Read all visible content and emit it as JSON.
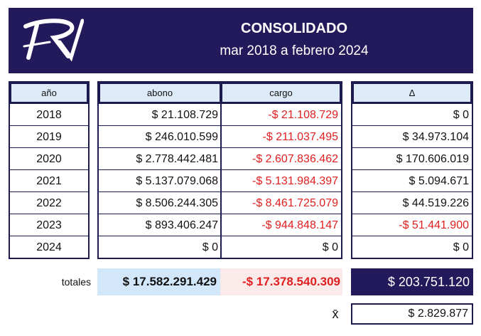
{
  "header": {
    "title": "CONSOLIDADO",
    "subtitle": "mar 2018 a febrero 2024",
    "logo_icon": "rv-monogram-logo",
    "background": "#221a5a"
  },
  "table": {
    "columns": {
      "year": "año",
      "abono": "abono",
      "cargo": "cargo",
      "delta": "Δ"
    },
    "rows": [
      {
        "year": "2018",
        "abono": "$ 21.108.729",
        "cargo": "-$ 21.108.729",
        "delta": "$ 0"
      },
      {
        "year": "2019",
        "abono": "$ 246.010.599",
        "cargo": "-$ 211.037.495",
        "delta": "$ 34.973.104"
      },
      {
        "year": "2020",
        "abono": "$ 2.778.442.481",
        "cargo": "-$ 2.607.836.462",
        "delta": "$ 170.606.019"
      },
      {
        "year": "2021",
        "abono": "$ 5.137.079.068",
        "cargo": "-$ 5.131.984.397",
        "delta": "$ 5.094.671"
      },
      {
        "year": "2022",
        "abono": "$ 8.506.244.305",
        "cargo": "-$ 8.461.725.079",
        "delta": "$ 44.519.226"
      },
      {
        "year": "2023",
        "abono": "$ 893.406.247",
        "cargo": "-$ 944.848.147",
        "delta": "-$ 51.441.900"
      },
      {
        "year": "2024",
        "abono": "$ 0",
        "cargo": "$ 0",
        "delta": "$ 0"
      }
    ]
  },
  "totals": {
    "label": "totales",
    "abono": "$ 17.582.291.429",
    "cargo": "-$ 17.378.540.309",
    "delta": "$ 203.751.120"
  },
  "mean": {
    "symbol": "x̄",
    "value": "$ 2.829.877"
  },
  "colors": {
    "navy": "#221a5a",
    "negative": "#e02020",
    "header_fill": "#ddeaf7",
    "abono_total_fill": "#d3e7fb",
    "cargo_total_fill": "#fbeaea"
  }
}
